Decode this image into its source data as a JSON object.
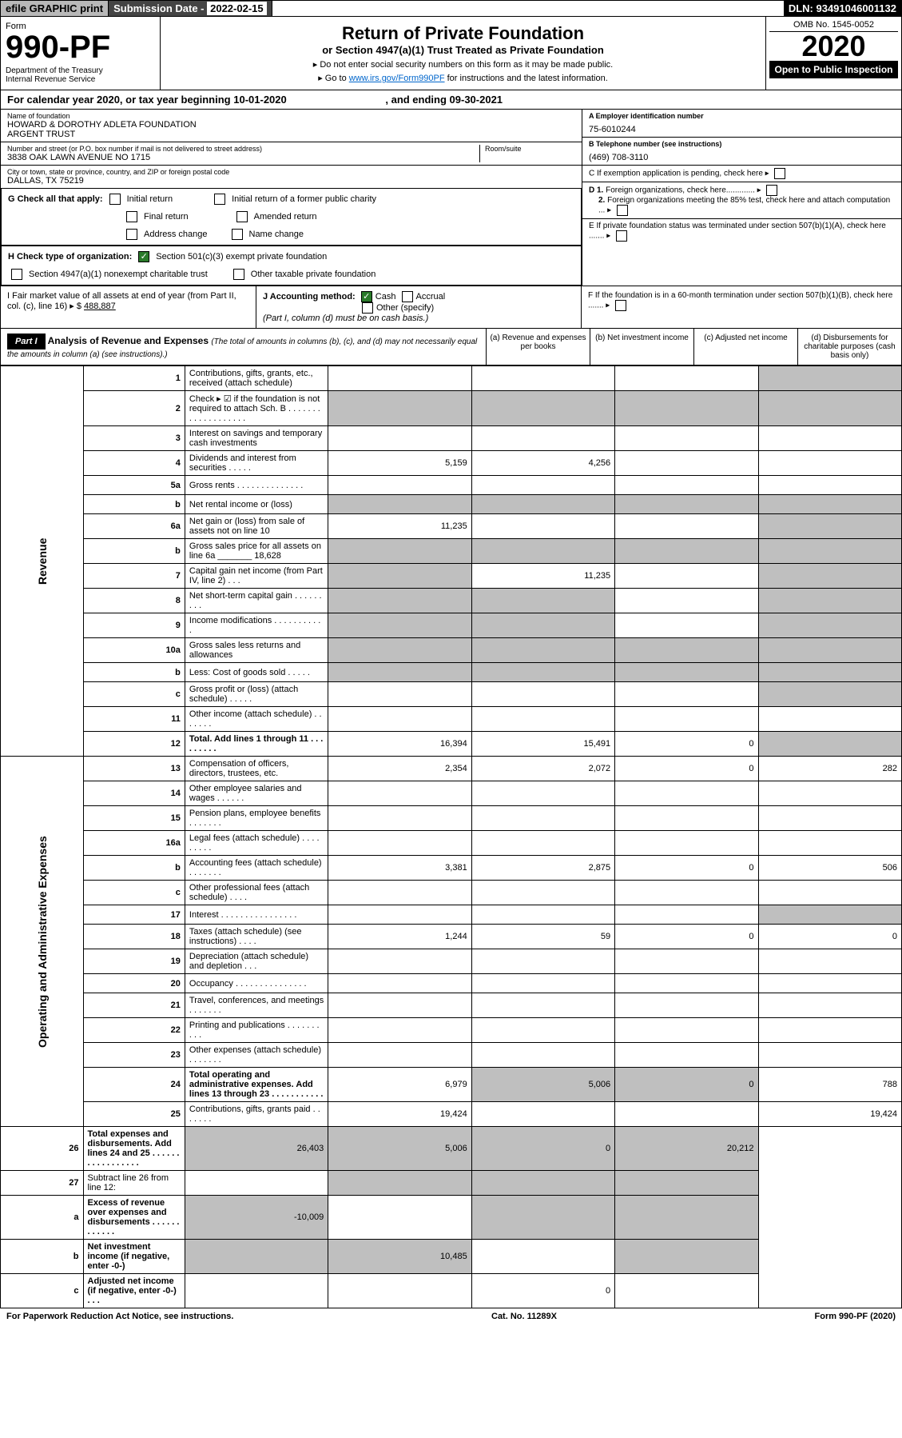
{
  "header": {
    "efile": "efile GRAPHIC print",
    "sub_lbl": "Submission Date - ",
    "sub_date": "2022-02-15",
    "dln": "DLN: 93491046001132",
    "form_word": "Form",
    "form_num": "990-PF",
    "dept": "Department of the Treasury\nInternal Revenue Service",
    "title": "Return of Private Foundation",
    "subtitle": "or Section 4947(a)(1) Trust Treated as Private Foundation",
    "instr1": "▸ Do not enter social security numbers on this form as it may be made public.",
    "instr2_pre": "▸ Go to ",
    "instr2_link": "www.irs.gov/Form990PF",
    "instr2_post": " for instructions and the latest information.",
    "omb": "OMB No. 1545-0052",
    "year": "2020",
    "open": "Open to Public Inspection"
  },
  "cal": {
    "text_pre": "For calendar year 2020, or tax year beginning ",
    "begin": "10-01-2020",
    "text_mid": ", and ending ",
    "end": "09-30-2021"
  },
  "id": {
    "name_lbl": "Name of foundation",
    "name": "HOWARD & DOROTHY ADLETA FOUNDATION\nARGENT TRUST",
    "addr_lbl": "Number and street (or P.O. box number if mail is not delivered to street address)",
    "addr": "3838 OAK LAWN AVENUE NO 1715",
    "room_lbl": "Room/suite",
    "city_lbl": "City or town, state or province, country, and ZIP or foreign postal code",
    "city": "DALLAS, TX  75219",
    "ein_lbl": "A Employer identification number",
    "ein": "75-6010244",
    "tel_lbl": "B Telephone number (see instructions)",
    "tel": "(469) 708-3110",
    "c": "C If exemption application is pending, check here",
    "d1": "D 1. Foreign organizations, check here.............",
    "d2": "2. Foreign organizations meeting the 85% test, check here and attach computation ...",
    "e": "E If private foundation status was terminated under section 507(b)(1)(A), check here .......",
    "f": "F If the foundation is in a 60-month termination under section 507(b)(1)(B), check here ......."
  },
  "g": {
    "lbl": "G Check all that apply:",
    "o1": "Initial return",
    "o2": "Initial return of a former public charity",
    "o3": "Final return",
    "o4": "Amended return",
    "o5": "Address change",
    "o6": "Name change"
  },
  "h": {
    "lbl": "H Check type of organization:",
    "o1": "Section 501(c)(3) exempt private foundation",
    "o2": "Section 4947(a)(1) nonexempt charitable trust",
    "o3": "Other taxable private foundation"
  },
  "i": {
    "lbl": "I Fair market value of all assets at end of year (from Part II, col. (c), line 16) ▸ $",
    "val": "488,887"
  },
  "j": {
    "lbl": "J Accounting method:",
    "o1": "Cash",
    "o2": "Accrual",
    "other": "Other (specify)",
    "note": "(Part I, column (d) must be on cash basis.)"
  },
  "part1": {
    "lbl": "Part I",
    "title": "Analysis of Revenue and Expenses ",
    "note": "(The total of amounts in columns (b), (c), and (d) may not necessarily equal the amounts in column (a) (see instructions).)",
    "colA": "(a) Revenue and expenses per books",
    "colB": "(b) Net investment income",
    "colC": "(c) Adjusted net income",
    "colD": "(d) Disbursements for charitable purposes (cash basis only)"
  },
  "vlabels": {
    "rev": "Revenue",
    "oae": "Operating and Administrative Expenses"
  },
  "rows": [
    {
      "n": "1",
      "d": "Contributions, gifts, grants, etc., received (attach schedule)"
    },
    {
      "n": "2",
      "d": "Check ▸ ☑ if the foundation is not required to attach Sch. B . . . . . . . . . . . . . . . . . . ."
    },
    {
      "n": "3",
      "d": "Interest on savings and temporary cash investments"
    },
    {
      "n": "4",
      "d": "Dividends and interest from securities . . . . .",
      "a": "5,159",
      "b": "4,256"
    },
    {
      "n": "5a",
      "d": "Gross rents . . . . . . . . . . . . . ."
    },
    {
      "n": "b",
      "d": "Net rental income or (loss)"
    },
    {
      "n": "6a",
      "d": "Net gain or (loss) from sale of assets not on line 10",
      "a": "11,235"
    },
    {
      "n": "b",
      "d": "Gross sales price for all assets on line 6a _______ 18,628"
    },
    {
      "n": "7",
      "d": "Capital gain net income (from Part IV, line 2) . . .",
      "b": "11,235"
    },
    {
      "n": "8",
      "d": "Net short-term capital gain . . . . . . . . ."
    },
    {
      "n": "9",
      "d": "Income modifications . . . . . . . . . . ."
    },
    {
      "n": "10a",
      "d": "Gross sales less returns and allowances"
    },
    {
      "n": "b",
      "d": "Less: Cost of goods sold . . . . ."
    },
    {
      "n": "c",
      "d": "Gross profit or (loss) (attach schedule) . . . . ."
    },
    {
      "n": "11",
      "d": "Other income (attach schedule) . . . . . . ."
    },
    {
      "n": "12",
      "d": "Total. Add lines 1 through 11 . . . . . . . . .",
      "a": "16,394",
      "b": "15,491",
      "c": "0",
      "bold": true
    },
    {
      "n": "13",
      "d": "Compensation of officers, directors, trustees, etc.",
      "a": "2,354",
      "b": "2,072",
      "c": "0",
      "dd": "282"
    },
    {
      "n": "14",
      "d": "Other employee salaries and wages . . . . . ."
    },
    {
      "n": "15",
      "d": "Pension plans, employee benefits . . . . . . ."
    },
    {
      "n": "16a",
      "d": "Legal fees (attach schedule) . . . . . . . . ."
    },
    {
      "n": "b",
      "d": "Accounting fees (attach schedule) . . . . . . .",
      "a": "3,381",
      "b": "2,875",
      "c": "0",
      "dd": "506"
    },
    {
      "n": "c",
      "d": "Other professional fees (attach schedule) . . . ."
    },
    {
      "n": "17",
      "d": "Interest . . . . . . . . . . . . . . . ."
    },
    {
      "n": "18",
      "d": "Taxes (attach schedule) (see instructions) . . . .",
      "a": "1,244",
      "b": "59",
      "c": "0",
      "dd": "0"
    },
    {
      "n": "19",
      "d": "Depreciation (attach schedule) and depletion . . ."
    },
    {
      "n": "20",
      "d": "Occupancy . . . . . . . . . . . . . . ."
    },
    {
      "n": "21",
      "d": "Travel, conferences, and meetings . . . . . . ."
    },
    {
      "n": "22",
      "d": "Printing and publications . . . . . . . . . ."
    },
    {
      "n": "23",
      "d": "Other expenses (attach schedule) . . . . . . ."
    },
    {
      "n": "24",
      "d": "Total operating and administrative expenses. Add lines 13 through 23 . . . . . . . . . . .",
      "a": "6,979",
      "b": "5,006",
      "c": "0",
      "dd": "788",
      "bold": true
    },
    {
      "n": "25",
      "d": "Contributions, gifts, grants paid . . . . . . .",
      "a": "19,424",
      "dd": "19,424"
    },
    {
      "n": "26",
      "d": "Total expenses and disbursements. Add lines 24 and 25 . . . . . . . . . . . . . . . . .",
      "a": "26,403",
      "b": "5,006",
      "c": "0",
      "dd": "20,212",
      "bold": true
    },
    {
      "n": "27",
      "d": "Subtract line 26 from line 12:"
    },
    {
      "n": "a",
      "d": "Excess of revenue over expenses and disbursements . . . . . . . . . . . .",
      "a": "-10,009",
      "bold": true
    },
    {
      "n": "b",
      "d": "Net investment income (if negative, enter -0-)",
      "b": "10,485",
      "bold": true
    },
    {
      "n": "c",
      "d": "Adjusted net income (if negative, enter -0-) . . .",
      "c": "0",
      "bold": true
    }
  ],
  "gray_map": {
    "1": [
      "dd"
    ],
    "2": [
      "a",
      "b",
      "c",
      "dd"
    ],
    "b5": [
      "a",
      "b",
      "c",
      "dd"
    ],
    "6a": [
      "dd"
    ],
    "b6": [
      "a",
      "b",
      "c",
      "dd"
    ],
    "7": [
      "a",
      "dd"
    ],
    "8": [
      "a",
      "b",
      "dd"
    ],
    "9": [
      "a",
      "b",
      "dd"
    ],
    "10a": [
      "a",
      "b",
      "c",
      "dd"
    ],
    "b10": [
      "a",
      "b",
      "c",
      "dd"
    ],
    "c10": [
      "dd"
    ],
    "19": [
      "dd"
    ],
    "25": [
      "b",
      "c"
    ],
    "27": [
      "a",
      "b",
      "c",
      "dd"
    ],
    "a27": [
      "b",
      "c",
      "dd"
    ],
    "b27": [
      "a",
      "c",
      "dd"
    ],
    "c27": [
      "a",
      "b",
      "dd"
    ]
  },
  "footer": {
    "l": "For Paperwork Reduction Act Notice, see instructions.",
    "m": "Cat. No. 11289X",
    "r": "Form 990-PF (2020)"
  }
}
